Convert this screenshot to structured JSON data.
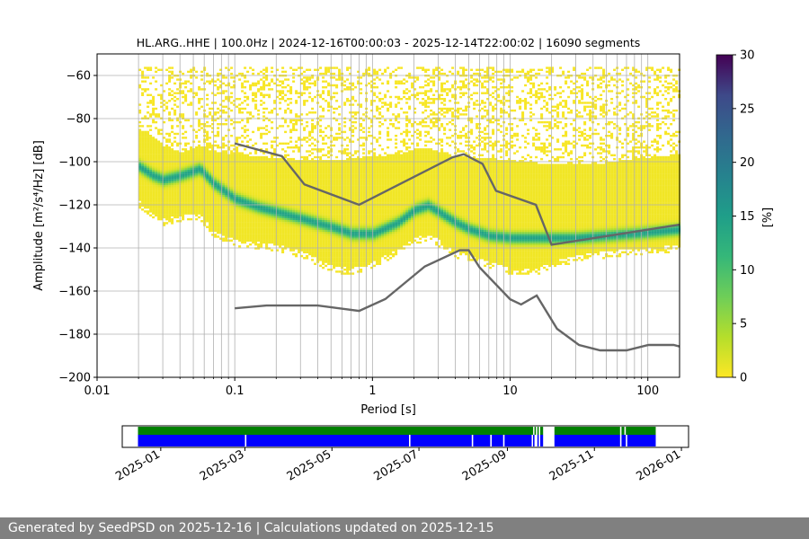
{
  "title": "HL.ARG..HHE | 100.0Hz | 2024-12-16T00:00:03 - 2025-12-14T22:00:02 | 16090 segments",
  "footer": "Generated by SeedPSD on 2025-12-16 | Calculations updated on 2025-12-15",
  "chart_data": [
    {
      "type": "heatmap",
      "title": "HL.ARG..HHE | 100.0Hz | 2024-12-16T00:00:03 - 2025-12-14T22:00:02 | 16090 segments",
      "xlabel": "Period [s]",
      "ylabel": "Amplitude [m²/s⁴/Hz] [dB]",
      "xscale": "log",
      "xlim": [
        0.01,
        170
      ],
      "ylim": [
        -200,
        -50
      ],
      "xticks": [
        0.01,
        0.1,
        1,
        10,
        100
      ],
      "xtick_labels": [
        "0.01",
        "0.1",
        "1",
        "10",
        "100"
      ],
      "yticks": [
        -60,
        -80,
        -100,
        -120,
        -140,
        -160,
        -180,
        -200
      ],
      "grid": true,
      "colorbar": {
        "label": "[%]",
        "range": [
          0,
          30
        ],
        "ticks": [
          0,
          5,
          10,
          15,
          20,
          25,
          30
        ],
        "colormap": "viridis_r"
      },
      "pdf_mode_curve": {
        "period": [
          0.02,
          0.025,
          0.03,
          0.04,
          0.055,
          0.07,
          0.1,
          0.15,
          0.2,
          0.3,
          0.5,
          0.7,
          1,
          1.5,
          2,
          2.5,
          3,
          4,
          5,
          7,
          10,
          15,
          20,
          30,
          50,
          80,
          120,
          170
        ],
        "db": [
          -102,
          -106,
          -108,
          -106,
          -103,
          -110,
          -117,
          -121,
          -123,
          -126,
          -130,
          -133,
          -133,
          -128,
          -122,
          -120,
          -123,
          -128,
          -131,
          -134,
          -135,
          -135,
          -135,
          -135,
          -134,
          -133,
          -132,
          -131
        ]
      },
      "pdf_upper_curve": {
        "period": [
          0.02,
          0.025,
          0.03,
          0.04,
          0.055,
          0.07,
          0.1,
          0.15,
          0.2,
          0.3,
          0.5,
          0.7,
          1,
          1.5,
          2,
          2.5,
          3,
          4,
          5,
          7,
          10,
          15,
          20,
          30,
          50,
          80,
          120,
          170
        ],
        "db": [
          -84,
          -88,
          -92,
          -95,
          -92,
          -95,
          -96,
          -97,
          -98,
          -99,
          -99,
          -98,
          -97,
          -96,
          -94,
          -93,
          -95,
          -97,
          -98,
          -98,
          -99,
          -100,
          -101,
          -101,
          -100,
          -98,
          -97,
          -96
        ]
      },
      "pdf_lower_curve": {
        "period": [
          0.02,
          0.025,
          0.03,
          0.04,
          0.055,
          0.07,
          0.1,
          0.15,
          0.2,
          0.3,
          0.5,
          0.7,
          1,
          1.5,
          2,
          2.5,
          3,
          4,
          5,
          7,
          10,
          15,
          20,
          30,
          50,
          80,
          120,
          170
        ],
        "db": [
          -118,
          -124,
          -126,
          -124,
          -124,
          -132,
          -136,
          -137,
          -138,
          -141,
          -148,
          -149,
          -146,
          -140,
          -135,
          -133,
          -136,
          -141,
          -143,
          -146,
          -149,
          -149,
          -146,
          -143,
          -141,
          -140,
          -139,
          -138
        ]
      },
      "scatter_region": {
        "period_range": [
          0.02,
          170
        ],
        "db_top": -56,
        "db_top_right": -57
      },
      "nlnm": {
        "period": [
          0.1,
          0.17,
          0.4,
          0.8,
          1.24,
          2.4,
          4.3,
          5.0,
          6.0,
          10.0,
          12.0,
          15.6,
          21.9,
          31.6,
          45.0,
          70.0,
          101.0,
          154.0,
          170.0
        ],
        "db": [
          -168.0,
          -166.7,
          -166.7,
          -169.2,
          -163.7,
          -148.6,
          -141.1,
          -141.1,
          -149.0,
          -163.8,
          -166.2,
          -162.1,
          -177.5,
          -185.0,
          -187.5,
          -187.5,
          -185.0,
          -185.0,
          -185.7
        ]
      },
      "nhnm": {
        "period": [
          0.1,
          0.22,
          0.32,
          0.8,
          3.8,
          4.6,
          6.3,
          7.9,
          15.4,
          20.0,
          354.8
        ],
        "db": [
          -91.5,
          -97.4,
          -110.5,
          -120.0,
          -98.0,
          -96.5,
          -101.0,
          -113.5,
          -120.0,
          -138.5,
          -126.0
        ]
      }
    },
    {
      "type": "timeline",
      "xlim": [
        "2024-12-05",
        "2026-01-06"
      ],
      "xticks": [
        "2025-01",
        "2025-03",
        "2025-05",
        "2025-07",
        "2025-09",
        "2025-11",
        "2026-01"
      ],
      "upper_bar": {
        "color": "#008000",
        "segments": [
          [
            "2024-12-16",
            "2025-09-19"
          ],
          [
            "2025-09-20",
            "2025-09-21"
          ],
          [
            "2025-09-22",
            "2025-09-23"
          ],
          [
            "2025-09-24",
            "2025-09-26"
          ],
          [
            "2025-10-04",
            "2025-11-19"
          ],
          [
            "2025-11-20",
            "2025-11-22"
          ],
          [
            "2025-11-23",
            "2025-12-14"
          ]
        ]
      },
      "lower_bar": {
        "color": "#0000ff",
        "segments": [
          [
            "2024-12-16",
            "2025-03-01"
          ],
          [
            "2025-03-02",
            "2025-06-24"
          ],
          [
            "2025-06-25",
            "2025-08-07"
          ],
          [
            "2025-08-08",
            "2025-08-20"
          ],
          [
            "2025-08-21",
            "2025-08-29"
          ],
          [
            "2025-08-30",
            "2025-09-18"
          ],
          [
            "2025-09-19",
            "2025-09-20"
          ],
          [
            "2025-09-22",
            "2025-09-23"
          ],
          [
            "2025-09-24",
            "2025-09-26"
          ],
          [
            "2025-10-04",
            "2025-11-19"
          ],
          [
            "2025-11-20",
            "2025-11-23"
          ],
          [
            "2025-11-24",
            "2025-12-14"
          ]
        ]
      }
    }
  ],
  "colors": {
    "grid": "#b0b0b0",
    "model_line": "#666666",
    "footer_bg": "#808080"
  }
}
